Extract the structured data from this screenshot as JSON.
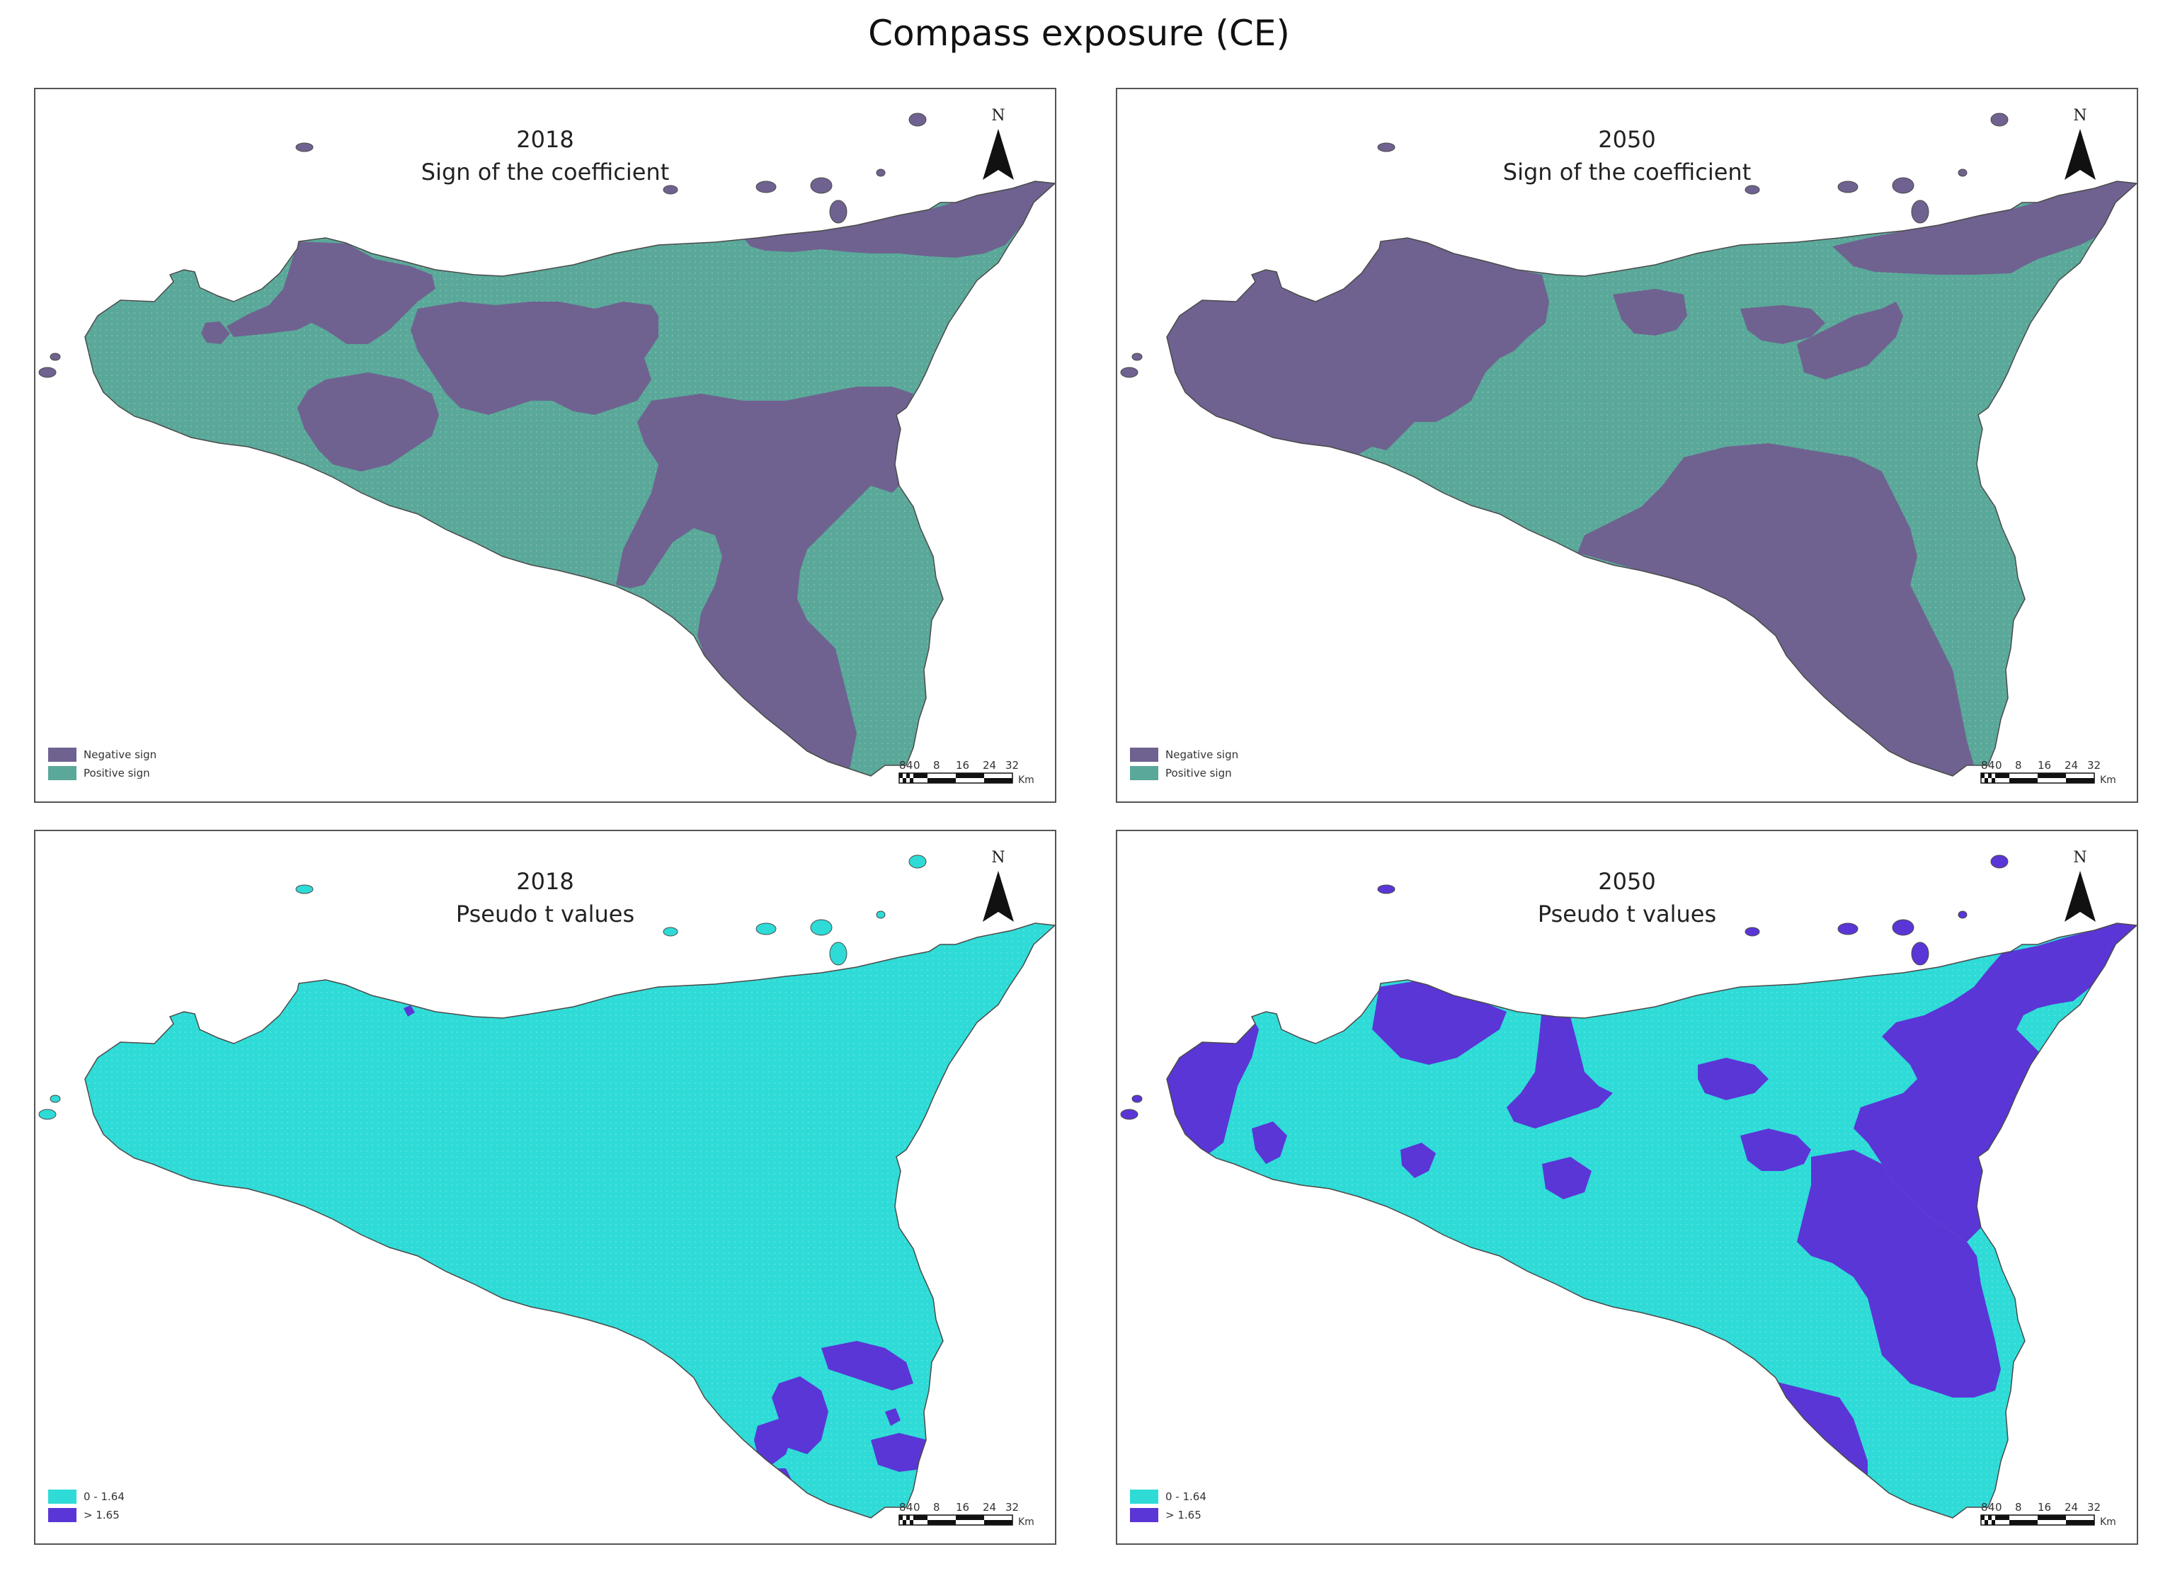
{
  "title": "Compass exposure (CE)",
  "colors": {
    "negative": "#6f6290",
    "positive": "#5aa899",
    "low": "#2edbd7",
    "high": "#5a36d6"
  },
  "north_label": "N",
  "scale": {
    "ticks": [
      "8",
      "4",
      "0",
      "8",
      "16",
      "24",
      "32"
    ],
    "unit": "Km"
  },
  "panels": [
    {
      "year": "2018",
      "subtitle": "Sign of the coefficient",
      "legend": [
        {
          "label": "Negative sign",
          "color": "#6f6290"
        },
        {
          "label": "Positive sign",
          "color": "#5aa899"
        }
      ]
    },
    {
      "year": "2050",
      "subtitle": "Sign of the coefficient",
      "legend": [
        {
          "label": "Negative sign",
          "color": "#6f6290"
        },
        {
          "label": "Positive sign",
          "color": "#5aa899"
        }
      ]
    },
    {
      "year": "2018",
      "subtitle": "Pseudo t values",
      "legend": [
        {
          "label": "0 - 1.64",
          "color": "#2edbd7"
        },
        {
          "label": "> 1.65",
          "color": "#5a36d6"
        }
      ]
    },
    {
      "year": "2050",
      "subtitle": "Pseudo t values",
      "legend": [
        {
          "label": "0 - 1.64",
          "color": "#2edbd7"
        },
        {
          "label": "> 1.65",
          "color": "#5a36d6"
        }
      ]
    }
  ]
}
